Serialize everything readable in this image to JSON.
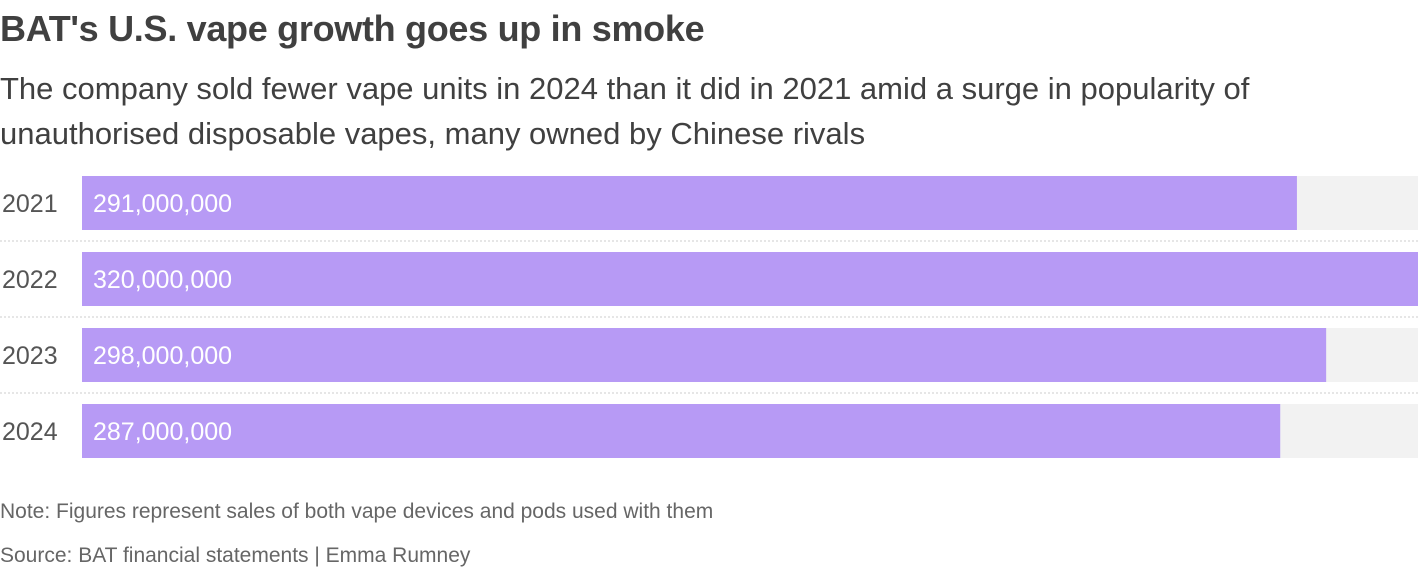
{
  "header": {
    "title": "BAT's U.S. vape growth goes up in smoke",
    "subtitle": "The company sold fewer vape units in 2024 than it did in 2021 amid a surge in popularity of unauthorised disposable vapes, many owned by Chinese rivals"
  },
  "footer": {
    "note": "Note: Figures represent sales of both vape devices and pods used with them",
    "source": "Source: BAT financial statements | Emma Rumney"
  },
  "colors": {
    "bar": "#b79af5",
    "track": "#f2f2f2",
    "value_label": "#ffffff",
    "category_label": "#555555",
    "separator": "#cccccc"
  },
  "chart_data": {
    "type": "bar",
    "orientation": "horizontal",
    "categories": [
      "2021",
      "2022",
      "2023",
      "2024"
    ],
    "values": [
      291000000,
      320000000,
      298000000,
      287000000
    ],
    "value_labels": [
      "291,000,000",
      "320,000,000",
      "298,000,000",
      "287,000,000"
    ],
    "xlim": [
      0,
      320000000
    ],
    "grid": false,
    "legend": "none"
  }
}
